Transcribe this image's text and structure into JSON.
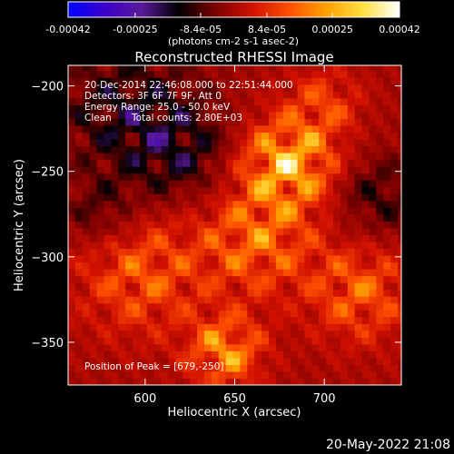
{
  "chart_data": {
    "type": "heatmap",
    "title": "Reconstructed RHESSI Image",
    "xlabel": "Heliocentric X (arcsec)",
    "ylabel": "Heliocentric Y (arcsec)",
    "xlim": [
      557,
      743
    ],
    "ylim": [
      -375,
      -188
    ],
    "x_ticks": [
      600,
      650,
      700
    ],
    "y_ticks": [
      -200,
      -250,
      -300,
      -350
    ],
    "colorbar": {
      "range": [
        -0.00042,
        0.00042
      ],
      "tick_values": [
        -0.00042,
        -0.00025,
        -8.4e-05,
        8.4e-05,
        0.00025,
        0.00042
      ],
      "tick_labels": [
        "-0.00042",
        "-0.00025",
        "-8.4e-05",
        "8.4e-05",
        "0.00025",
        "0.00042"
      ],
      "unit_label": "(photons cm-2 s-1 asec-2)",
      "colors": [
        "#0000ff",
        "#3a00c8",
        "#5a1a9a",
        "#000000",
        "#7a0000",
        "#d01000",
        "#ff5000",
        "#ffa000",
        "#ffe040",
        "#ffffff"
      ]
    },
    "annotations": {
      "time_range": "20-Dec-2014 22:46:08.000 to 22:51:44.000",
      "detectors": "Detectors: 3F 6F 7F 9F, Att 0",
      "energy": "Energy Range: 25.0 - 50.0 keV",
      "clean": "Clean",
      "counts": "Total counts: 2.80E+03",
      "peak": "Position of Peak = [679,-250]"
    },
    "peak": [
      679,
      -250
    ],
    "sources": [
      {
        "x": 680,
        "y": -245,
        "amp": 0.00045,
        "sigma": 18
      },
      {
        "x": 662,
        "y": -290,
        "amp": 0.00028,
        "sigma": 22
      },
      {
        "x": 645,
        "y": -355,
        "amp": 0.00035,
        "sigma": 14
      },
      {
        "x": 598,
        "y": -310,
        "amp": 0.00024,
        "sigma": 24
      },
      {
        "x": 720,
        "y": -320,
        "amp": 0.00025,
        "sigma": 20
      },
      {
        "x": 700,
        "y": -210,
        "amp": 0.00018,
        "sigma": 14
      },
      {
        "x": 590,
        "y": -215,
        "amp": -0.00022,
        "sigma": 28
      },
      {
        "x": 620,
        "y": -240,
        "amp": -0.00018,
        "sigma": 20
      },
      {
        "x": 730,
        "y": -265,
        "amp": -0.00017,
        "sigma": 18
      },
      {
        "x": 575,
        "y": -275,
        "amp": -0.00015,
        "sigma": 14
      }
    ]
  },
  "footer": {
    "datestamp": "20-May-2022 21:08"
  }
}
